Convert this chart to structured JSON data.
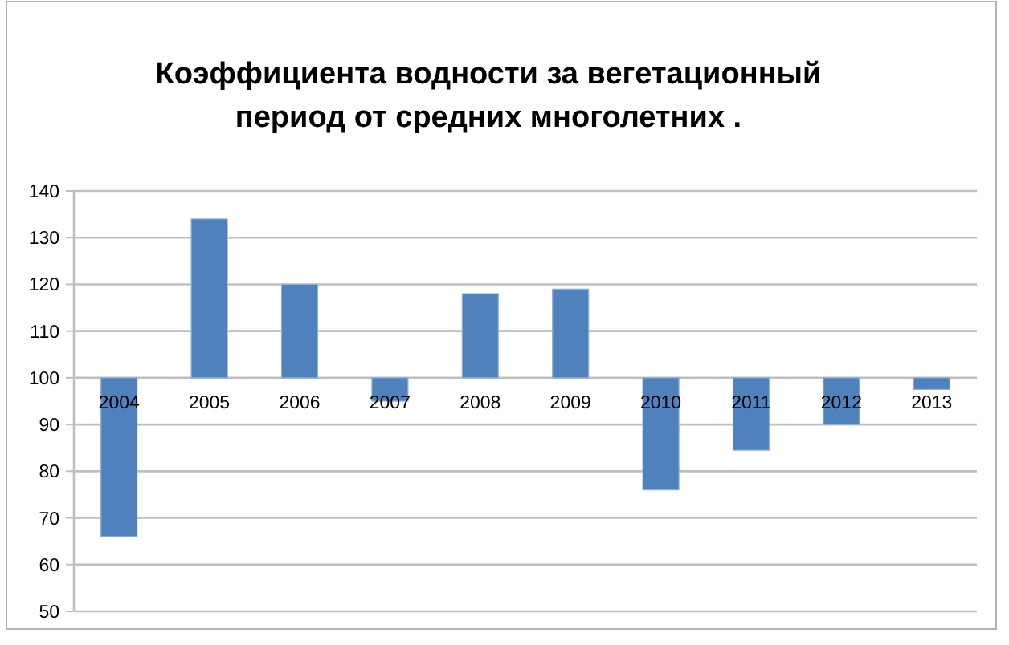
{
  "chart_data": {
    "type": "bar",
    "title": "Коэффициента водности за вегетационный\nпериод от средних многолетних .",
    "categories": [
      "2004",
      "2005",
      "2006",
      "2007",
      "2008",
      "2009",
      "2010",
      "2011",
      "2012",
      "2013"
    ],
    "values": [
      -34,
      34,
      20,
      -5,
      18,
      19,
      -24,
      -15.5,
      -10,
      -2.5
    ],
    "base": [
      100,
      100,
      100,
      100,
      100,
      100,
      100,
      100,
      100,
      100
    ],
    "color": "#4f81bd",
    "ylim": [
      50,
      140
    ],
    "yticks": [
      50,
      60,
      70,
      80,
      90,
      100,
      110,
      120,
      130,
      140
    ],
    "grid": "y"
  }
}
